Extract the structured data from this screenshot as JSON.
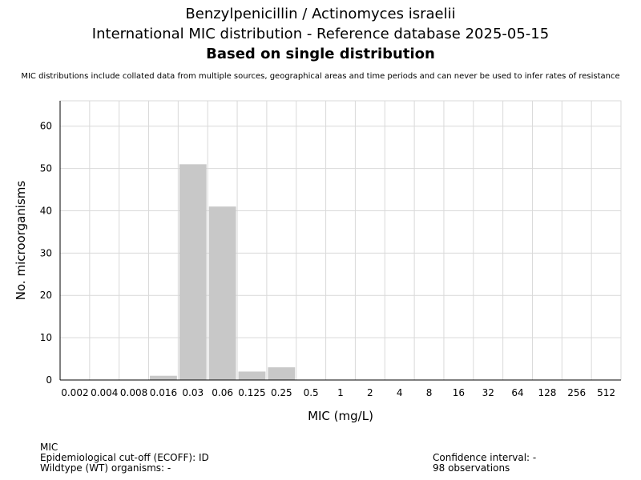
{
  "header": {
    "title_line1": "Benzylpenicillin / Actinomyces israelii",
    "title_line2": "International MIC distribution - Reference database 2025-05-15",
    "title_line3": "Based on single distribution",
    "disclaimer": "MIC distributions include collated data from multiple sources, geographical areas and time periods and can never be used to infer rates of resistance"
  },
  "chart_data": {
    "type": "bar",
    "categories": [
      "0.002",
      "0.004",
      "0.008",
      "0.016",
      "0.03",
      "0.06",
      "0.125",
      "0.25",
      "0.5",
      "1",
      "2",
      "4",
      "8",
      "16",
      "32",
      "64",
      "128",
      "256",
      "512"
    ],
    "values": [
      0,
      0,
      0,
      1,
      51,
      41,
      2,
      3,
      0,
      0,
      0,
      0,
      0,
      0,
      0,
      0,
      0,
      0,
      0
    ],
    "xlabel": "MIC (mg/L)",
    "ylabel": "No. microorganisms",
    "ylim": [
      0,
      66
    ],
    "yticks": [
      0,
      10,
      20,
      30,
      40,
      50,
      60
    ],
    "grid": true,
    "bar_color": "#c8c8c8",
    "grid_color": "#d9d9d9"
  },
  "footer": {
    "left_line1": "MIC",
    "left_line2": "Epidemiological cut-off (ECOFF): ID",
    "left_line3": "Wildtype (WT) organisms:  -",
    "right_line1": "Confidence interval: -",
    "right_line2": "98 observations"
  }
}
